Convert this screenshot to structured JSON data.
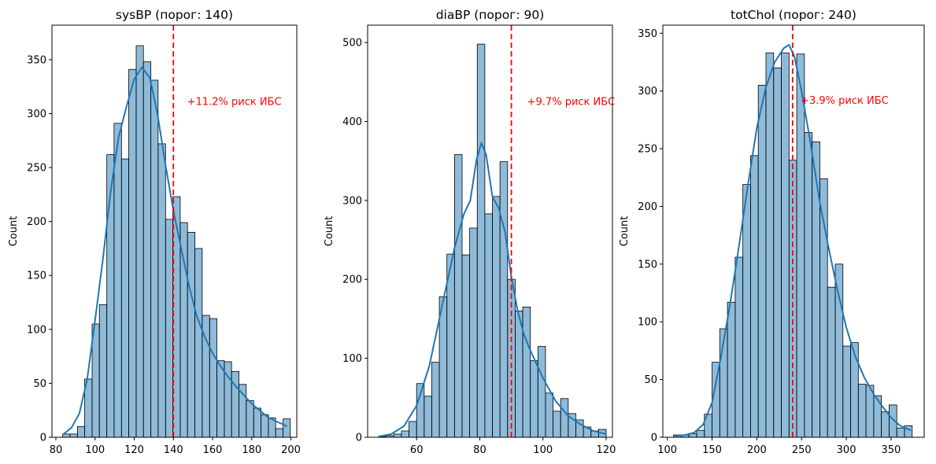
{
  "colors": {
    "bar_fill": "#1f77b4",
    "bar_fill_opacity": 0.5,
    "kde_line": "#1f77b4",
    "threshold_line": "#ff0000",
    "annotation": "#ff0000",
    "axis": "#000000"
  },
  "chart_data": [
    {
      "type": "histogram",
      "title": "sysBP (порог: 140)",
      "xlabel": "",
      "ylabel": "Count",
      "xlim": [
        78,
        203
      ],
      "ylim": [
        0,
        382
      ],
      "x_ticks": [
        80,
        100,
        120,
        140,
        160,
        180,
        200
      ],
      "y_ticks": [
        0,
        50,
        100,
        150,
        200,
        250,
        300,
        350
      ],
      "bin_edges": [
        83.5,
        87.2,
        91.0,
        94.7,
        98.5,
        102.2,
        106.0,
        109.7,
        113.5,
        117.2,
        121.0,
        124.7,
        128.5,
        132.2,
        136.0,
        139.7,
        143.5,
        147.2,
        151.0,
        154.7,
        158.5,
        162.2,
        166.0,
        169.7,
        173.5,
        177.2,
        181.0,
        184.7,
        188.5,
        192.2,
        196.0,
        199.7
      ],
      "counts": [
        3,
        3,
        10,
        54,
        105,
        123,
        262,
        291,
        258,
        341,
        363,
        348,
        331,
        272,
        202,
        223,
        199,
        190,
        175,
        113,
        110,
        71,
        70,
        61,
        49,
        34,
        27,
        21,
        18,
        8,
        17
      ],
      "kde": {
        "x": [
          84,
          88,
          92,
          96,
          100,
          104,
          108,
          112,
          116,
          120,
          124,
          128,
          132,
          136,
          140,
          144,
          148,
          152,
          156,
          160,
          164,
          168,
          172,
          176,
          180,
          184,
          188,
          192,
          196,
          198
        ],
        "y": [
          3,
          9,
          22,
          54,
          108,
          165,
          228,
          278,
          306,
          332,
          343,
          333,
          298,
          252,
          210,
          175,
          140,
          112,
          93,
          78,
          66,
          56,
          47,
          39,
          31,
          25,
          19,
          15,
          12,
          10
        ]
      },
      "threshold": 140,
      "annotation": "+11.2% риск ИБС",
      "annotation_pos": [
        147,
        308
      ]
    },
    {
      "type": "histogram",
      "title": "diaBP (порог: 90)",
      "xlabel": "",
      "ylabel": "Count",
      "xlim": [
        44.5,
        122
      ],
      "ylim": [
        0,
        522
      ],
      "x_ticks": [
        60,
        80,
        100,
        120
      ],
      "y_ticks": [
        0,
        100,
        200,
        300,
        400,
        500
      ],
      "bin_edges": [
        48.0,
        50.4,
        52.8,
        55.2,
        57.6,
        60.0,
        62.4,
        64.8,
        67.2,
        69.6,
        72.0,
        74.4,
        76.8,
        79.2,
        81.6,
        84.0,
        86.4,
        88.8,
        91.2,
        93.6,
        96.0,
        98.4,
        100.8,
        103.2,
        105.6,
        108.0,
        110.4,
        112.8,
        115.2,
        117.6,
        120.0
      ],
      "counts": [
        1,
        2,
        4,
        8,
        20,
        68,
        52,
        95,
        178,
        232,
        358,
        231,
        265,
        498,
        283,
        305,
        349,
        200,
        160,
        165,
        97,
        115,
        56,
        33,
        49,
        30,
        22,
        13,
        8,
        10
      ],
      "kde": {
        "x": [
          48,
          52,
          56,
          60,
          64,
          68,
          72,
          75,
          77,
          79,
          80.5,
          82,
          84,
          86,
          88,
          90,
          92,
          94,
          96,
          100,
          104,
          108,
          112,
          116,
          120
        ],
        "y": [
          1,
          4,
          14,
          40,
          90,
          165,
          240,
          283,
          300,
          352,
          373,
          358,
          305,
          290,
          260,
          203,
          160,
          130,
          110,
          75,
          46,
          27,
          16,
          8,
          4
        ]
      },
      "threshold": 90,
      "annotation": "+9.7% риск ИБС",
      "annotation_pos": [
        95,
        421
      ]
    },
    {
      "type": "histogram",
      "title": "totChol (порог: 240)",
      "xlabel": "",
      "ylabel": "Count",
      "xlim": [
        95,
        387
      ],
      "ylim": [
        0,
        357
      ],
      "x_ticks": [
        100,
        150,
        200,
        250,
        300,
        350
      ],
      "y_ticks": [
        0,
        50,
        100,
        150,
        200,
        250,
        300,
        350
      ],
      "bin_edges": [
        107.0,
        115.6,
        124.2,
        132.8,
        141.4,
        150.0,
        158.6,
        167.2,
        175.8,
        184.4,
        193.0,
        201.6,
        210.2,
        218.8,
        227.4,
        236.0,
        244.6,
        253.2,
        261.8,
        270.4,
        279.0,
        287.6,
        296.2,
        304.8,
        313.4,
        322.0,
        330.6,
        339.2,
        347.8,
        356.4,
        365.0,
        373.6
      ],
      "counts": [
        2,
        2,
        3,
        6,
        20,
        65,
        94,
        117,
        156,
        219,
        244,
        305,
        333,
        320,
        333,
        240,
        332,
        264,
        256,
        224,
        130,
        150,
        79,
        82,
        46,
        45,
        36,
        22,
        28,
        8,
        10
      ],
      "kde": {
        "x": [
          108,
          120,
          130,
          140,
          150,
          160,
          170,
          180,
          190,
          200,
          210,
          220,
          230,
          236,
          242,
          250,
          260,
          270,
          280,
          290,
          300,
          310,
          320,
          330,
          340,
          350,
          360,
          372
        ],
        "y": [
          1,
          2,
          4,
          11,
          30,
          70,
          115,
          165,
          218,
          268,
          303,
          325,
          337,
          340,
          330,
          300,
          255,
          205,
          165,
          128,
          95,
          70,
          52,
          38,
          27,
          17,
          10,
          6
        ]
      },
      "threshold": 240,
      "annotation": "+3.9% риск ИБС",
      "annotation_pos": [
        249,
        289
      ]
    }
  ]
}
